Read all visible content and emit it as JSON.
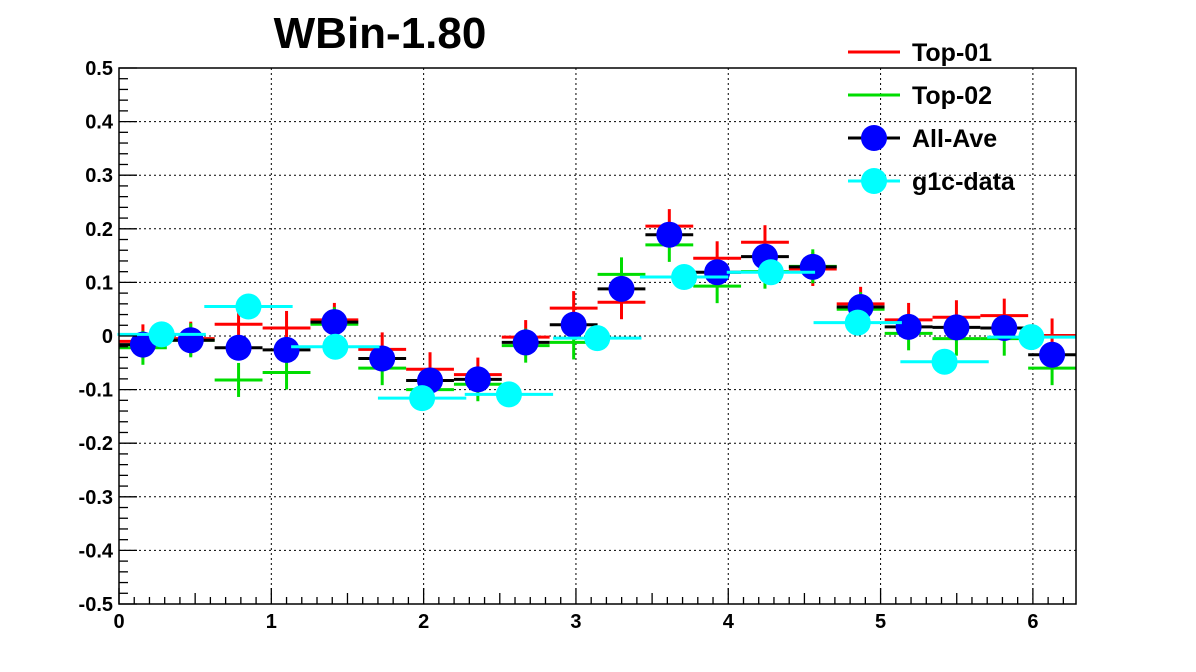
{
  "chart_data": {
    "type": "scatter",
    "title": "WBin-1.80",
    "xlabel": "",
    "ylabel": "",
    "xlim": [
      0,
      6.283
    ],
    "ylim": [
      -0.5,
      0.5
    ],
    "grid": true,
    "legend_position": "top-right",
    "x_ticks": [
      "0",
      "1",
      "2",
      "3",
      "4",
      "5",
      "6"
    ],
    "y_ticks": [
      "-0.5",
      "-0.4",
      "-0.3",
      "-0.2",
      "-0.1",
      "0",
      "0.1",
      "0.2",
      "0.3",
      "0.4",
      "0.5"
    ],
    "series": [
      {
        "name": "Top-01",
        "color": "#ff0000",
        "marker": "cross",
        "x": [
          0.157,
          0.471,
          0.785,
          1.1,
          1.414,
          1.728,
          2.042,
          2.356,
          2.67,
          2.985,
          3.299,
          3.613,
          3.927,
          4.241,
          4.555,
          4.869,
          5.184,
          5.498,
          5.812,
          6.126
        ],
        "y": [
          -0.01,
          -0.005,
          0.022,
          0.015,
          0.03,
          -0.025,
          -0.062,
          -0.072,
          -0.002,
          0.052,
          0.063,
          0.205,
          0.145,
          0.175,
          0.125,
          0.06,
          0.03,
          0.035,
          0.038,
          0.001
        ],
        "xerr": 0.157
      },
      {
        "name": "Top-02",
        "color": "#00dd00",
        "marker": "cross",
        "x": [
          0.157,
          0.471,
          0.785,
          1.1,
          1.414,
          1.728,
          2.042,
          2.356,
          2.67,
          2.985,
          3.299,
          3.613,
          3.927,
          4.241,
          4.555,
          4.869,
          5.184,
          5.498,
          5.812,
          6.126
        ],
        "y": [
          -0.022,
          -0.008,
          -0.082,
          -0.068,
          0.022,
          -0.06,
          -0.1,
          -0.09,
          -0.018,
          -0.012,
          0.115,
          0.17,
          0.093,
          0.12,
          0.13,
          0.05,
          0.005,
          -0.005,
          -0.005,
          -0.06
        ],
        "xerr": 0.157
      },
      {
        "name": "All-Ave",
        "color": "#0000ff",
        "marker": "circle",
        "x": [
          0.157,
          0.471,
          0.785,
          1.1,
          1.414,
          1.728,
          2.042,
          2.356,
          2.67,
          2.985,
          3.299,
          3.613,
          3.927,
          4.241,
          4.555,
          4.869,
          5.184,
          5.498,
          5.812,
          6.126
        ],
        "y": [
          -0.016,
          -0.008,
          -0.022,
          -0.026,
          0.026,
          -0.042,
          -0.083,
          -0.081,
          -0.012,
          0.021,
          0.088,
          0.189,
          0.119,
          0.148,
          0.129,
          0.054,
          0.017,
          0.016,
          0.015,
          -0.035
        ],
        "xerr": 0.157
      },
      {
        "name": "g1c-data",
        "color": "#00ffff",
        "marker": "circle",
        "x": [
          0.28,
          0.85,
          1.42,
          1.99,
          2.56,
          3.14,
          3.71,
          4.28,
          4.85,
          5.42,
          5.99
        ],
        "y": [
          0.003,
          0.055,
          -0.02,
          -0.116,
          -0.109,
          -0.004,
          0.11,
          0.119,
          0.025,
          -0.048,
          -0.002
        ],
        "xerr": 0.29
      }
    ]
  }
}
